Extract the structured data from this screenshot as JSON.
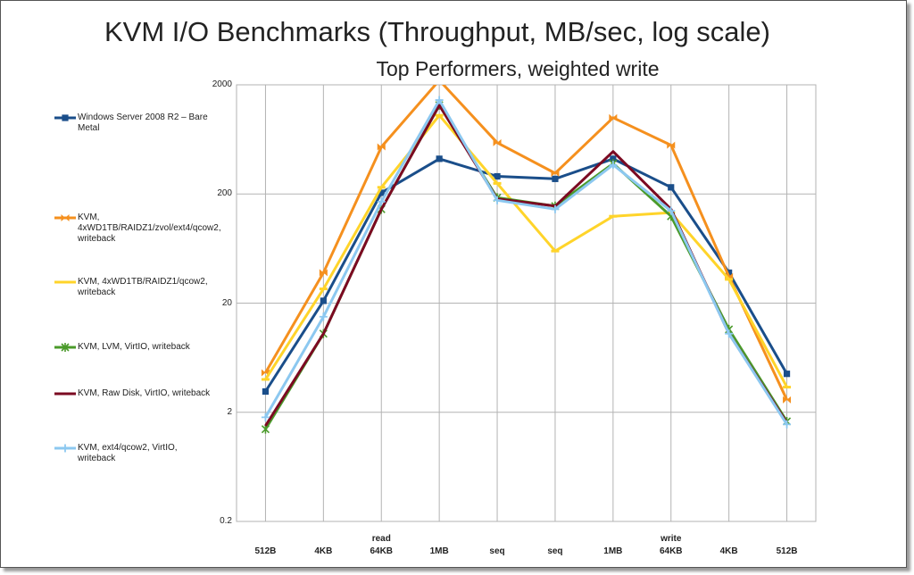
{
  "chart_data": {
    "type": "line",
    "title": "KVM I/O Benchmarks (Throughput, MB/sec, log scale)",
    "subtitle": "Top Performers, weighted write",
    "scale": "log",
    "ylim": [
      0.2,
      2000
    ],
    "yticks": [
      "2000",
      "200",
      "20",
      "2",
      "0.2"
    ],
    "ytick_values": [
      2000,
      200,
      20,
      2,
      0.2
    ],
    "grid": true,
    "legend_position": "left",
    "categories": [
      "512B",
      "4KB",
      "64KB",
      "1MB",
      "seq",
      "seq",
      "1MB",
      "64KB",
      "4KB",
      "512B"
    ],
    "category_groups": [
      "",
      "",
      "read",
      "",
      "",
      "",
      "",
      "write",
      "",
      ""
    ],
    "series": [
      {
        "name": "Windows Server 2008 R2 – Bare Metal",
        "color": "#1a4e8a",
        "marker": "square",
        "values": [
          3.1,
          21,
          205,
          420,
          290,
          275,
          420,
          230,
          38,
          4.5
        ]
      },
      {
        "name": "KVM, 4xWD1TB/RAIDZ1/zvol/ext4/qcow2, writeback",
        "color": "#f5901e",
        "marker": "bowtie",
        "values": [
          4.6,
          38,
          540,
          2200,
          590,
          310,
          1000,
          560,
          35,
          2.6
        ]
      },
      {
        "name": "KVM, 4xWD1TB/RAIDZ1/qcow2, writeback",
        "color": "#ffd42a",
        "marker": "dash",
        "values": [
          4.0,
          27,
          230,
          1050,
          250,
          60,
          125,
          135,
          33,
          3.4
        ]
      },
      {
        "name": "KVM, LVM, VirtIO, writeback",
        "color": "#4a9a2a",
        "marker": "star",
        "values": [
          1.4,
          10.5,
          145,
          1300,
          185,
          155,
          380,
          125,
          11.5,
          1.65
        ]
      },
      {
        "name": "KVM, Raw Disk, VirtIO, writeback",
        "color": "#7b0a22",
        "marker": "none",
        "values": [
          1.5,
          10.5,
          145,
          1300,
          180,
          155,
          490,
          145,
          10.5,
          1.6
        ]
      },
      {
        "name": "KVM, ext4/qcow2, VirtIO, writeback",
        "color": "#8cc8f0",
        "marker": "plus",
        "values": [
          1.8,
          15,
          170,
          1450,
          175,
          145,
          370,
          140,
          10.5,
          1.55
        ]
      }
    ]
  }
}
